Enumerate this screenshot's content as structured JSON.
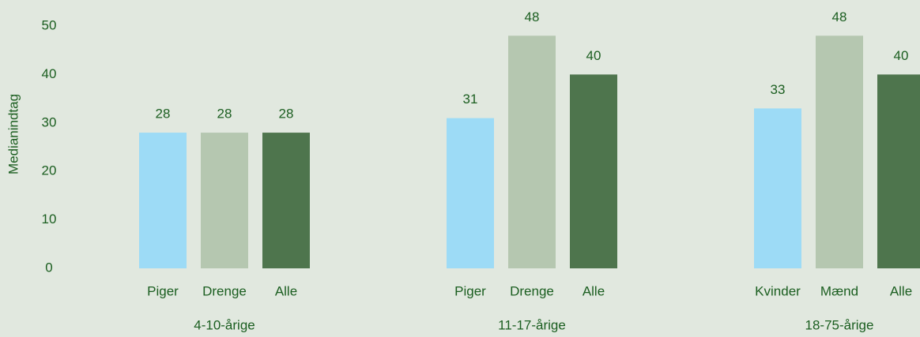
{
  "chart_data": {
    "type": "bar",
    "ylabel": "Medianindtag",
    "ylim": [
      0,
      50
    ],
    "yticks": [
      0,
      10,
      20,
      30,
      40,
      50
    ],
    "grid": false,
    "groups": [
      {
        "name": "4-10-årige",
        "categories": [
          "Piger",
          "Drenge",
          "Alle"
        ],
        "values": [
          28,
          28,
          28
        ],
        "colors": [
          "#9ddbf6",
          "#b5c7b0",
          "#4e754d"
        ]
      },
      {
        "name": "11-17-årige",
        "categories": [
          "Piger",
          "Drenge",
          "Alle"
        ],
        "values": [
          31,
          48,
          40
        ],
        "colors": [
          "#9ddbf6",
          "#b5c7b0",
          "#4e754d"
        ]
      },
      {
        "name": "18-75-årige",
        "categories": [
          "Kvinder",
          "Mænd",
          "Alle"
        ],
        "values": [
          33,
          48,
          40
        ],
        "colors": [
          "#9ddbf6",
          "#b5c7b0",
          "#4e754d"
        ]
      }
    ]
  }
}
